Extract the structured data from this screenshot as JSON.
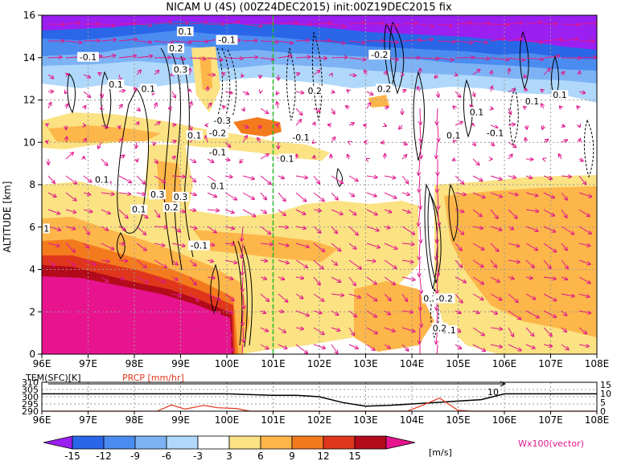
{
  "chart_data": {
    "type": "heatmap",
    "title": "NICAM U (4S) (00Z24DEC2015) init:00Z19DEC2015 fix",
    "main": {
      "ylabel": "ALTITUDE [km]",
      "xlim": [
        96,
        108
      ],
      "ylim": [
        0,
        16
      ],
      "x_ticks": [
        "96E",
        "97E",
        "98E",
        "99E",
        "100E",
        "101E",
        "102E",
        "103E",
        "104E",
        "105E",
        "106E",
        "107E",
        "108E"
      ],
      "y_ticks": [
        "0",
        "2",
        "4",
        "6",
        "8",
        "10",
        "12",
        "14",
        "16"
      ],
      "grid": true,
      "marker_line_lon": 101.0,
      "contour_labels": [
        {
          "text": "0.1",
          "x": 99.1,
          "y": 15.2
        },
        {
          "text": "-0.1",
          "x": 100.0,
          "y": 14.8
        },
        {
          "text": "-0.1",
          "x": 97.0,
          "y": 14.0
        },
        {
          "text": "0.2",
          "x": 98.9,
          "y": 14.4
        },
        {
          "text": "-0.2",
          "x": 103.3,
          "y": 14.1
        },
        {
          "text": "0.3",
          "x": 99.0,
          "y": 13.4
        },
        {
          "text": "0.1",
          "x": 97.6,
          "y": 12.7
        },
        {
          "text": "0.1",
          "x": 98.3,
          "y": 12.5
        },
        {
          "text": "0.2",
          "x": 101.9,
          "y": 12.4
        },
        {
          "text": "0.2",
          "x": 103.4,
          "y": 12.5
        },
        {
          "text": "0.1",
          "x": 106.6,
          "y": 11.9
        },
        {
          "text": "0.1",
          "x": 107.2,
          "y": 12.2
        },
        {
          "text": "0.1",
          "x": 105.4,
          "y": 11.4
        },
        {
          "text": "-0.3",
          "x": 99.9,
          "y": 11.0
        },
        {
          "text": "-0.2",
          "x": 99.8,
          "y": 10.4
        },
        {
          "text": "0.1",
          "x": 99.3,
          "y": 10.3
        },
        {
          "text": "-0.1",
          "x": 101.6,
          "y": 10.2
        },
        {
          "text": "0.1",
          "x": 104.9,
          "y": 10.3
        },
        {
          "text": "-0.1",
          "x": 105.8,
          "y": 10.4
        },
        {
          "text": "-0.1",
          "x": 99.8,
          "y": 9.5
        },
        {
          "text": "0.1",
          "x": 101.3,
          "y": 9.2
        },
        {
          "text": "0.1",
          "x": 97.3,
          "y": 8.2
        },
        {
          "text": "0.1",
          "x": 99.8,
          "y": 7.9
        },
        {
          "text": "0.3",
          "x": 98.5,
          "y": 7.5
        },
        {
          "text": "0.3",
          "x": 99.0,
          "y": 7.4
        },
        {
          "text": "0.1",
          "x": 98.1,
          "y": 6.8
        },
        {
          "text": "0.2",
          "x": 98.8,
          "y": 6.9
        },
        {
          "text": "1",
          "x": 96.1,
          "y": 5.9
        },
        {
          "text": "-0.1",
          "x": 99.4,
          "y": 5.1
        },
        {
          "text": "0.2",
          "x": 104.4,
          "y": 2.6
        },
        {
          "text": "-0.2",
          "x": 104.7,
          "y": 2.6
        },
        {
          "text": "0.1",
          "x": 104.8,
          "y": 1.1
        },
        {
          "text": "0.2",
          "x": 104.6,
          "y": 1.2
        }
      ]
    },
    "sub": {
      "label_left": "TEM(SFC)[K]",
      "label_right": "PRCP [mm/hr]",
      "left_ticks": [
        "310",
        "305",
        "300",
        "295",
        "290"
      ],
      "left_range": [
        290,
        310
      ],
      "right_ticks": [
        "15",
        "10",
        "5",
        "0"
      ],
      "right_range": [
        0,
        15
      ],
      "x_ticks": [
        "96E",
        "97E",
        "98E",
        "99E",
        "100E",
        "101E",
        "102E",
        "103E",
        "104E",
        "105E",
        "106E",
        "107E",
        "108E"
      ],
      "annotation": "10",
      "temperature": {
        "lon": [
          96,
          97,
          98,
          99,
          100,
          101,
          101.5,
          102,
          102.5,
          103,
          103.5,
          104,
          104.5,
          105,
          105.5,
          106,
          107,
          108
        ],
        "values": [
          302,
          302,
          302,
          302,
          302,
          301,
          301,
          300,
          296,
          293.5,
          294,
          295,
          296,
          297,
          298,
          302,
          302,
          302
        ]
      },
      "precipitation": {
        "lon": [
          96,
          98,
          98.5,
          98.8,
          99.1,
          99.5,
          99.8,
          100.2,
          100.5,
          101,
          103.9,
          104.2,
          104.6,
          105,
          105.3,
          108
        ],
        "values": [
          0,
          0,
          0.1,
          3.2,
          1.1,
          3.0,
          1.8,
          1.4,
          0,
          0,
          0,
          2.8,
          6.8,
          0.4,
          0,
          0
        ]
      }
    },
    "colorbar": {
      "unit": "[m/s]",
      "ticks": [
        "-15",
        "-12",
        "-9",
        "-6",
        "-3",
        "3",
        "6",
        "9",
        "12",
        "15"
      ],
      "colors": [
        "#9b1ff0",
        "#2a66e8",
        "#4b8cf0",
        "#7db3f5",
        "#b0d8fa",
        "#ffffff",
        "#fbe283",
        "#fdb64a",
        "#f47a1e",
        "#e0371c",
        "#b30a1c",
        "#e8148f"
      ],
      "vector_label": "Wx100(vector)"
    }
  }
}
